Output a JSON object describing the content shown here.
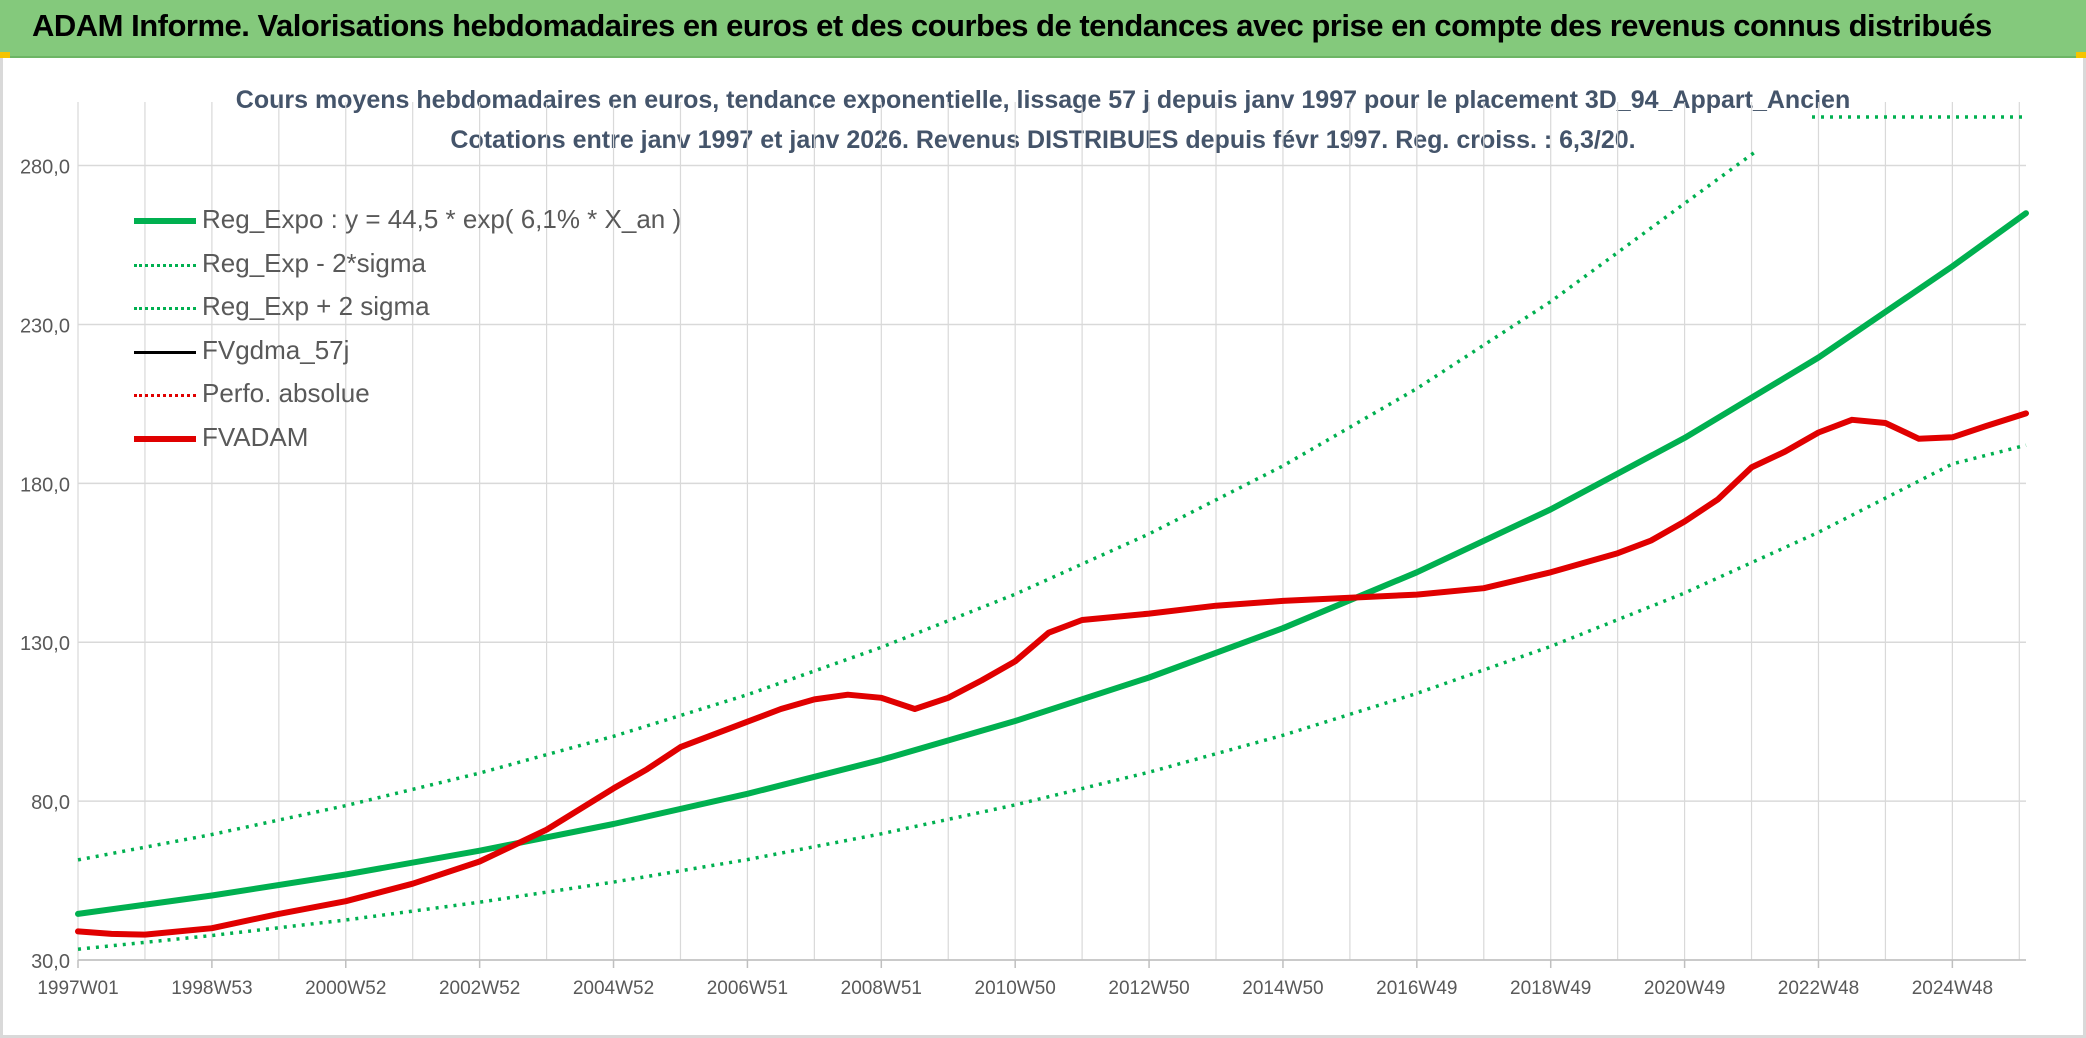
{
  "header": {
    "title": "ADAM Informe. Valorisations hebdomadaires en euros et des courbes de tendances avec prise en compte des revenus connus distribués"
  },
  "colors": {
    "header_bg": "#84c97c",
    "trend": "#00b050",
    "red": "#e00000",
    "black": "#000000",
    "title_text": "#44546a",
    "axis_text": "#595959",
    "grid": "#d9d9d9"
  },
  "chart_data": {
    "type": "line",
    "title": "Cours moyens hebdomadaires en euros, tendance exponentielle, lissage 57 j depuis janv 1997 pour le placement 3D_94_Appart_Ancien",
    "subtitle": "Cotations entre janv 1997 et janv 2026. Revenus DISTRIBUES depuis févr 1997. Reg. croiss. : 6,3/20.",
    "xlabel": "",
    "ylabel": "",
    "ylim": [
      30,
      300
    ],
    "y_ticks": [
      "30,0",
      "80,0",
      "130,0",
      "180,0",
      "230,0",
      "280,0"
    ],
    "x_range_years": [
      1997.0,
      2026.1
    ],
    "x_tick_labels": [
      "1997W01",
      "1998W53",
      "2000W52",
      "2002W52",
      "2004W52",
      "2006W51",
      "2008W51",
      "2010W50",
      "2012W50",
      "2014W50",
      "2016W49",
      "2018W49",
      "2020W49",
      "2022W48",
      "2024W48"
    ],
    "x_tick_years": [
      1997.0,
      1999.0,
      2001.0,
      2003.0,
      2005.0,
      2007.0,
      2009.0,
      2011.0,
      2013.0,
      2015.0,
      2017.0,
      2019.0,
      2021.0,
      2023.0,
      2025.0
    ],
    "grid": true,
    "legend_position": "top-left",
    "series": [
      {
        "name": "Reg_Expo : y = 44,5 * exp( 6,1% *  X_an )",
        "style": "solid-thick",
        "color": "#00b050",
        "x": [
          1997,
          1999,
          2001,
          2003,
          2005,
          2007,
          2009,
          2011,
          2013,
          2015,
          2017,
          2019,
          2021,
          2023,
          2025,
          2026.1
        ],
        "y": [
          44.5,
          50.3,
          56.9,
          64.4,
          72.8,
          82.3,
          93.0,
          105.2,
          118.9,
          134.4,
          152.0,
          171.8,
          194.3,
          219.6,
          248.3,
          265.0
        ]
      },
      {
        "name": "Reg_Exp - 2*sigma",
        "style": "dotted",
        "color": "#00b050",
        "x": [
          1997,
          1999,
          2001,
          2003,
          2005,
          2007,
          2009,
          2011,
          2013,
          2015,
          2017,
          2019,
          2021,
          2023,
          2025,
          2026.1
        ],
        "y": [
          33.4,
          37.7,
          42.6,
          48.2,
          54.5,
          61.6,
          69.7,
          78.8,
          89.1,
          100.7,
          113.9,
          128.7,
          145.5,
          164.6,
          186.1,
          192.0
        ]
      },
      {
        "name": "Reg_Exp + 2 sigma",
        "style": "dotted",
        "color": "#00b050",
        "x": [
          1997,
          1999,
          2001,
          2003,
          2005,
          2007,
          2009,
          2011,
          2013,
          2015,
          2017,
          2019,
          2021,
          2022.1
        ],
        "y": [
          61.5,
          69.5,
          78.6,
          88.8,
          100.4,
          113.5,
          128.4,
          145.1,
          164.1,
          185.5,
          209.8,
          237.2,
          268.1,
          285.0
        ]
      },
      {
        "name": "FVgdma_57j",
        "style": "solid",
        "color": "#000000",
        "x": [
          1997.0,
          1997.5,
          1998.0,
          1999.0,
          2000.0,
          2001.0,
          2002.0,
          2003.0,
          2004.0,
          2005.0,
          2005.5,
          2006.0,
          2007.0,
          2007.5,
          2008.0,
          2008.5,
          2009.0,
          2009.5,
          2010.0,
          2010.5,
          2011.0,
          2011.5,
          2012.0,
          2013.0,
          2014.0,
          2015.0,
          2016.0,
          2017.0,
          2018.0,
          2019.0,
          2020.0,
          2020.5,
          2021.0,
          2021.5,
          2022.0,
          2022.5,
          2023.0,
          2023.5,
          2024.0,
          2024.5,
          2025.0,
          2025.5,
          2026.1
        ],
        "y": [
          39.0,
          38.2,
          38.0,
          40.0,
          44.5,
          48.5,
          54.0,
          61.0,
          71.0,
          84.0,
          90.0,
          97.0,
          105.0,
          109.0,
          112.0,
          113.5,
          112.5,
          109.0,
          112.5,
          118.0,
          124.0,
          133.0,
          137.0,
          139.0,
          141.5,
          143.0,
          144.0,
          145.0,
          147.0,
          152.0,
          158.0,
          162.0,
          168.0,
          175.0,
          185.0,
          190.0,
          196.0,
          200.0,
          199.0,
          194.0,
          194.5,
          198.0,
          202.0
        ]
      },
      {
        "name": "Perfo. absolue",
        "style": "dotted",
        "color": "#e00000",
        "x": [
          1997.0,
          1997.5,
          1998.0,
          1999.0,
          2000.0,
          2001.0,
          2002.0,
          2003.0,
          2004.0,
          2005.0,
          2005.5,
          2006.0,
          2007.0,
          2007.5,
          2008.0,
          2008.5,
          2009.0,
          2009.5,
          2010.0,
          2010.5,
          2011.0,
          2011.5,
          2012.0,
          2013.0,
          2014.0,
          2015.0,
          2016.0,
          2017.0,
          2018.0,
          2019.0,
          2020.0,
          2020.5,
          2021.0,
          2021.5,
          2022.0,
          2022.5,
          2023.0,
          2023.5,
          2024.0,
          2024.5,
          2025.0,
          2025.5,
          2026.1
        ],
        "y": [
          39.0,
          38.2,
          38.0,
          40.0,
          44.5,
          48.5,
          54.0,
          61.0,
          71.0,
          84.0,
          90.0,
          97.0,
          105.0,
          109.0,
          112.0,
          113.5,
          112.5,
          109.0,
          112.5,
          118.0,
          124.0,
          133.0,
          137.0,
          139.0,
          141.5,
          143.0,
          144.0,
          145.0,
          147.0,
          152.0,
          158.0,
          162.0,
          168.0,
          175.0,
          185.0,
          190.0,
          196.0,
          200.0,
          199.0,
          194.0,
          194.5,
          198.0,
          202.0
        ]
      },
      {
        "name": "FVADAM",
        "style": "solid-thick",
        "color": "#e00000",
        "x": [
          1997.0,
          1997.5,
          1998.0,
          1999.0,
          2000.0,
          2001.0,
          2002.0,
          2003.0,
          2004.0,
          2005.0,
          2005.5,
          2006.0,
          2007.0,
          2007.5,
          2008.0,
          2008.5,
          2009.0,
          2009.5,
          2010.0,
          2010.5,
          2011.0,
          2011.5,
          2012.0,
          2013.0,
          2014.0,
          2015.0,
          2016.0,
          2017.0,
          2018.0,
          2019.0,
          2020.0,
          2020.5,
          2021.0,
          2021.5,
          2022.0,
          2022.5,
          2023.0,
          2023.5,
          2024.0,
          2024.5,
          2025.0,
          2025.5,
          2026.1
        ],
        "y": [
          39.0,
          38.2,
          38.0,
          40.0,
          44.5,
          48.5,
          54.0,
          61.0,
          71.0,
          84.0,
          90.0,
          97.0,
          105.0,
          109.0,
          112.0,
          113.5,
          112.5,
          109.0,
          112.5,
          118.0,
          124.0,
          133.0,
          137.0,
          139.0,
          141.5,
          143.0,
          144.0,
          145.0,
          147.0,
          152.0,
          158.0,
          162.0,
          168.0,
          175.0,
          185.0,
          190.0,
          196.0,
          200.0,
          199.0,
          194.0,
          194.5,
          198.0,
          202.0
        ]
      }
    ]
  }
}
